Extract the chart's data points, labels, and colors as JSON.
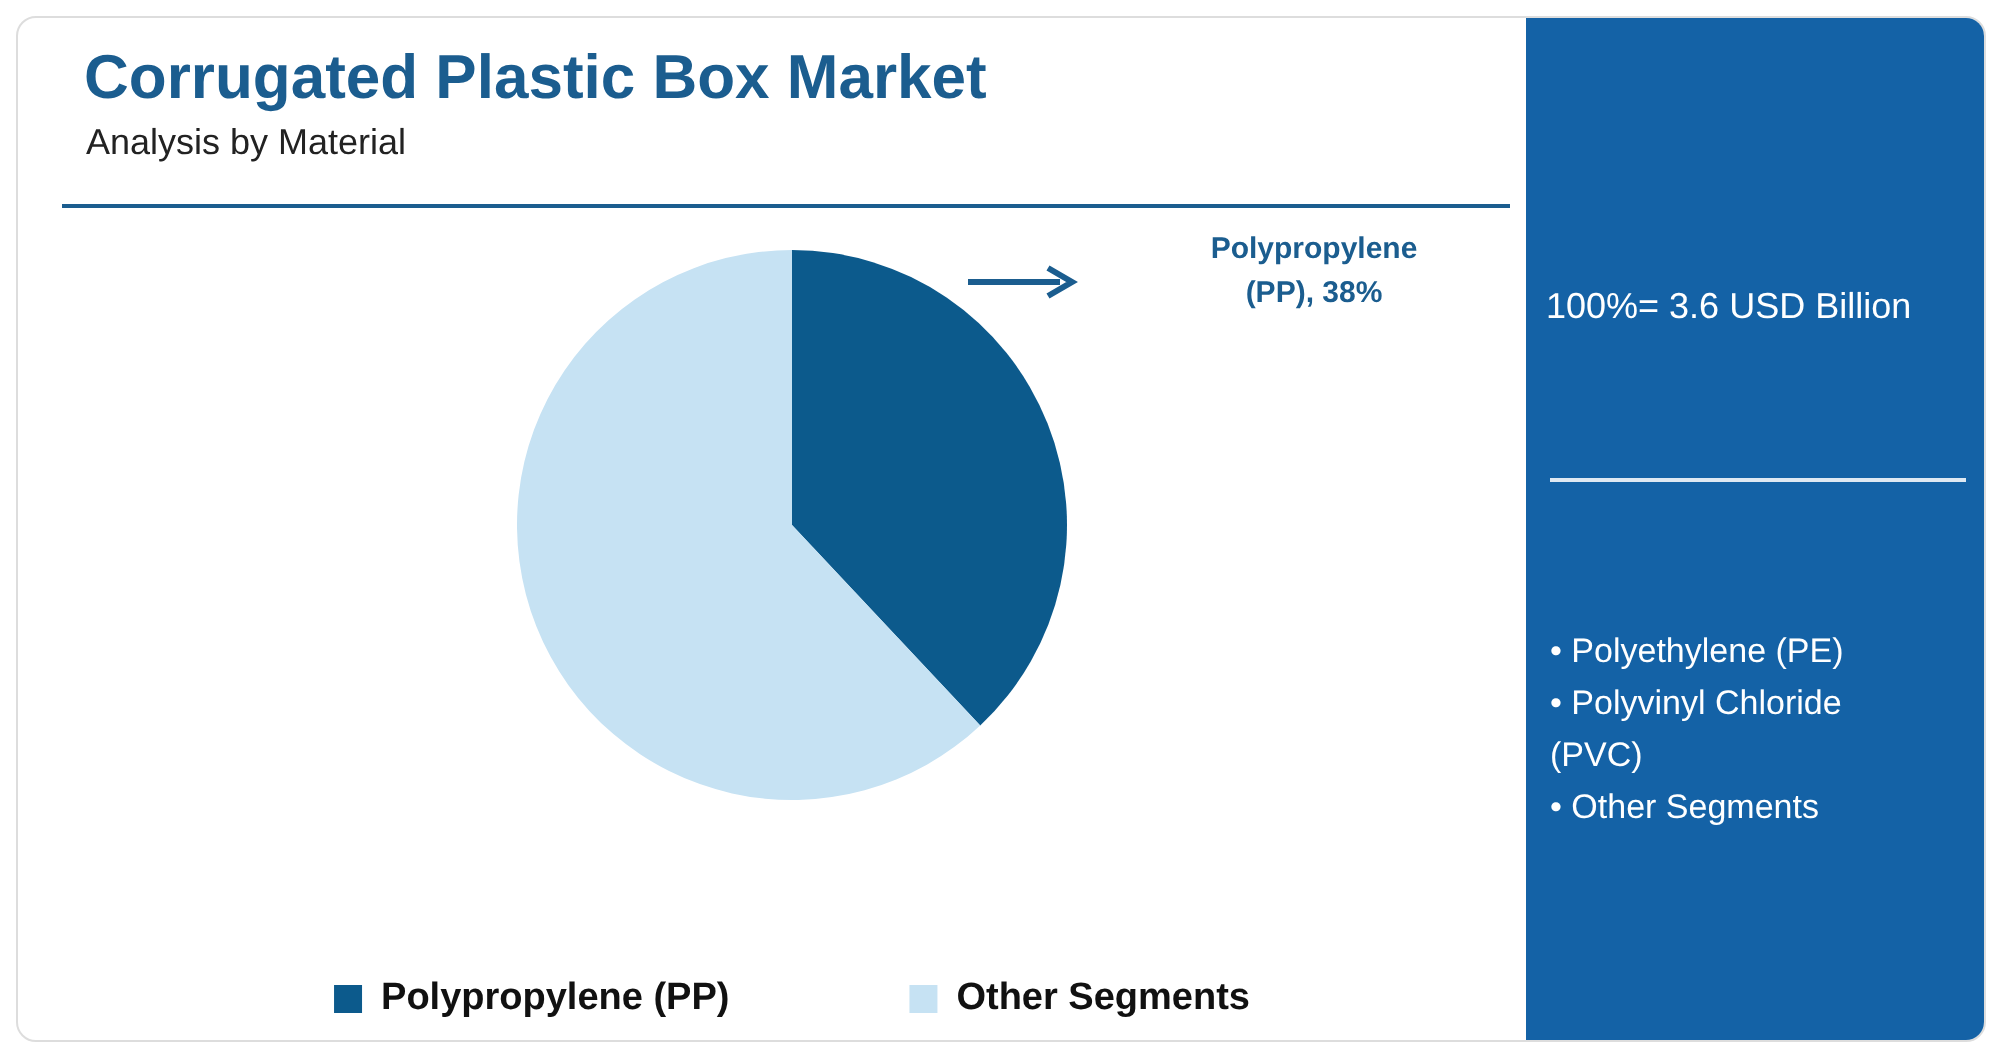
{
  "chart_data": {
    "type": "pie",
    "title": "Corrugated Plastic Box Market",
    "subtitle": "Analysis by Material",
    "categories": [
      "Polypropylene (PP)",
      "Other Segments"
    ],
    "values": [
      38,
      62
    ],
    "colors": [
      "#0c5a8c",
      "#c6e2f3"
    ],
    "legend": "bottom",
    "annotations": [
      "Polypropylene (PP), 38%",
      "100%= 3.6 USD Billion",
      "• Polyethylene (PE)",
      "• Polyvinyl Chloride (PVC)",
      "• Other Segments"
    ]
  }
}
